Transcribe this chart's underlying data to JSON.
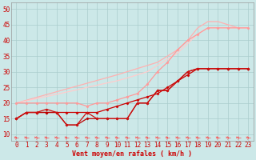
{
  "bg_color": "#cce8e8",
  "grid_color": "#aacccc",
  "xlabel": "Vent moyen/en rafales ( km/h )",
  "xlabel_color": "#cc0000",
  "xlabel_fontsize": 6,
  "tick_color": "#cc0000",
  "tick_fontsize": 5.5,
  "xlim": [
    -0.5,
    23.5
  ],
  "ylim": [
    8,
    52
  ],
  "yticks": [
    10,
    15,
    20,
    25,
    30,
    35,
    40,
    45,
    50
  ],
  "xticks": [
    0,
    1,
    2,
    3,
    4,
    5,
    6,
    7,
    8,
    9,
    10,
    11,
    12,
    13,
    14,
    15,
    16,
    17,
    18,
    19,
    20,
    21,
    22,
    23
  ],
  "series": [
    {
      "x": [
        0,
        1,
        2,
        3,
        4,
        5,
        6,
        7,
        8,
        9,
        10,
        11,
        12,
        13,
        14,
        15,
        16,
        17,
        18,
        19,
        20,
        21,
        22,
        23
      ],
      "y": [
        20,
        20.9,
        21.8,
        22.7,
        23.6,
        24.5,
        25.4,
        26.3,
        27.2,
        28.1,
        29,
        30,
        31,
        32,
        33,
        35,
        37,
        40,
        44,
        46,
        46,
        45,
        44,
        44
      ],
      "color": "#ffb0b0",
      "lw": 0.9,
      "marker": null
    },
    {
      "x": [
        0,
        1,
        2,
        3,
        4,
        5,
        6,
        7,
        8,
        9,
        10,
        11,
        12,
        13,
        14,
        15,
        16,
        17,
        18,
        19,
        20,
        21,
        22,
        23
      ],
      "y": [
        20,
        20.7,
        21.4,
        22.1,
        22.8,
        23.5,
        24.2,
        25,
        25.7,
        26.4,
        27.1,
        28,
        29,
        30,
        32,
        34,
        36,
        39,
        42,
        44,
        44,
        44,
        44,
        44
      ],
      "color": "#ffcccc",
      "lw": 0.9,
      "marker": null
    },
    {
      "x": [
        0,
        1,
        2,
        3,
        4,
        5,
        6,
        7,
        8,
        9,
        10,
        11,
        12,
        13,
        14,
        15,
        16,
        17,
        18,
        19,
        20,
        21,
        22,
        23
      ],
      "y": [
        20,
        20,
        20,
        20,
        20,
        20,
        20,
        19,
        20,
        20,
        21,
        22,
        23,
        26,
        30,
        33,
        37,
        40,
        42,
        44,
        44,
        44,
        44,
        44
      ],
      "color": "#ff9999",
      "lw": 0.9,
      "marker": "D",
      "markersize": 1.5
    },
    {
      "x": [
        0,
        1,
        2,
        3,
        4,
        5,
        6,
        7,
        8,
        9,
        10,
        11,
        12,
        13,
        14,
        15,
        16,
        17,
        18,
        19,
        20,
        21,
        22,
        23
      ],
      "y": [
        15,
        17,
        17,
        17,
        17,
        17,
        17,
        17,
        17,
        18,
        19,
        20,
        21,
        22,
        23,
        25,
        27,
        29,
        31,
        31,
        31,
        31,
        31,
        31
      ],
      "color": "#cc0000",
      "lw": 0.9,
      "marker": "D",
      "markersize": 1.5
    },
    {
      "x": [
        0,
        1,
        2,
        3,
        4,
        5,
        6,
        7,
        8,
        9,
        10,
        11,
        12,
        13,
        14,
        15,
        16,
        17,
        18,
        19,
        20,
        21,
        22,
        23
      ],
      "y": [
        15,
        17,
        17,
        17,
        17,
        13,
        13,
        15,
        15,
        15,
        15,
        15,
        20,
        20,
        24,
        24,
        27,
        30,
        31,
        31,
        31,
        31,
        31,
        31
      ],
      "color": "#bb0000",
      "lw": 0.9,
      "marker": "D",
      "markersize": 1.5
    },
    {
      "x": [
        0,
        1,
        2,
        3,
        4,
        5,
        6,
        7,
        8,
        9,
        10,
        11,
        12,
        13,
        14,
        15,
        16,
        17,
        18,
        19,
        20,
        21,
        22,
        23
      ],
      "y": [
        15,
        17,
        17,
        18,
        17,
        13,
        13,
        17,
        15,
        15,
        15,
        15,
        20,
        20,
        24,
        24,
        27,
        30,
        31,
        31,
        31,
        31,
        31,
        31
      ],
      "color": "#cc1111",
      "lw": 0.9,
      "marker": "D",
      "markersize": 1.5
    },
    {
      "x": [
        0,
        1,
        2,
        3,
        4,
        5,
        6,
        7,
        8,
        9,
        10,
        11,
        12,
        13,
        14,
        15,
        16,
        17,
        18,
        19,
        20,
        21,
        22,
        23
      ],
      "y": [
        9,
        9,
        9,
        9,
        9,
        9,
        9,
        9,
        9,
        9,
        9,
        9,
        9,
        9,
        9,
        9,
        9,
        9,
        9,
        9,
        9,
        9,
        9,
        9
      ],
      "color": "#ff4444",
      "lw": 0.5,
      "marker": "4",
      "markersize": 4,
      "linestyle": "none"
    }
  ]
}
